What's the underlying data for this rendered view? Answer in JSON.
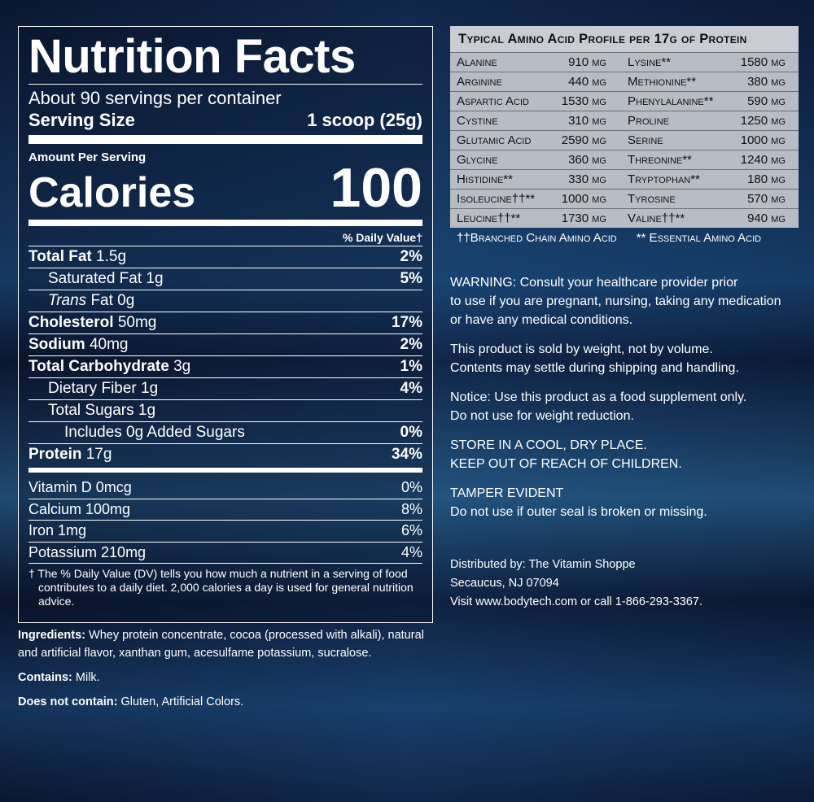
{
  "nutrition": {
    "title": "Nutrition Facts",
    "servings": "About 90 servings per container",
    "serving_size_label": "Serving Size",
    "serving_size_value": "1 scoop (25g)",
    "amount_per_serving": "Amount Per Serving",
    "calories_label": "Calories",
    "calories_value": "100",
    "daily_value_header": "% Daily Value†",
    "rows": [
      {
        "label": "Total Fat",
        "amount": "1.5g",
        "dv": "2%"
      },
      {
        "label": "Saturated Fat 1g",
        "dv": "5%"
      },
      {
        "label_italic": "Trans",
        "label": "Fat 0g"
      },
      {
        "label": "Cholesterol",
        "amount": "50mg",
        "dv": "17%"
      },
      {
        "label": "Sodium",
        "amount": "40mg",
        "dv": "2%"
      },
      {
        "label": "Total Carbohydrate",
        "amount": "3g",
        "dv": "1%"
      },
      {
        "label": "Dietary Fiber 1g",
        "dv": "4%"
      },
      {
        "label": "Total Sugars 1g"
      },
      {
        "label": "Includes 0g Added Sugars",
        "dv": "0%"
      },
      {
        "label": "Protein",
        "amount": "17g",
        "dv": "34%"
      }
    ],
    "vitamins": [
      {
        "label": "Vitamin D 0mcg",
        "dv": "0%"
      },
      {
        "label": "Calcium 100mg",
        "dv": "8%"
      },
      {
        "label": "Iron 1mg",
        "dv": "6%"
      },
      {
        "label": "Potassium 210mg",
        "dv": "4%"
      }
    ],
    "footnote": "† The % Daily Value (DV) tells you how much a nutrient in a serving of food contributes to a daily diet. 2,000 calories a day is used for general nutrition advice."
  },
  "ingredients": {
    "label": "Ingredients:",
    "text": "Whey protein concentrate, cocoa (processed with alkali), natural and artificial flavor, xanthan gum, acesulfame potassium, sucralose."
  },
  "contains": {
    "label": "Contains:",
    "text": "Milk."
  },
  "does_not_contain": {
    "label": "Does not contain:",
    "text": "Gluten, Artificial Colors."
  },
  "amino": {
    "title": "Typical Amino Acid Profile per 17g of Protein",
    "rows": [
      [
        "Alanine",
        "910 mg",
        "Lysine**",
        "1580 mg"
      ],
      [
        "Arginine",
        "440 mg",
        "Methionine**",
        "380 mg"
      ],
      [
        "Aspartic Acid",
        "1530 mg",
        "Phenylalanine**",
        "590 mg"
      ],
      [
        "Cystine",
        "310 mg",
        "Proline",
        "1250 mg"
      ],
      [
        "Glutamic Acid",
        "2590 mg",
        "Serine",
        "1000 mg"
      ],
      [
        "Glycine",
        "360 mg",
        "Threonine**",
        "1240 mg"
      ],
      [
        "Histidine**",
        "330 mg",
        "Tryptophan**",
        "180 mg"
      ],
      [
        "Isoleucine††**",
        "1000 mg",
        "Tyrosine",
        "570 mg"
      ],
      [
        "Leucine††**",
        "1730 mg",
        "Valine††**",
        "940 mg"
      ]
    ],
    "legend": [
      "††Branched Chain Amino Acid",
      "** Essential Amino Acid"
    ]
  },
  "notices": [
    [
      "WARNING: Consult your healthcare provider prior",
      "to use if you are pregnant, nursing, taking any medication",
      "or have any medical conditions."
    ],
    [
      "This product is sold by weight, not by volume.",
      "Contents may settle during shipping and handling."
    ],
    [
      "Notice: Use this product as a food supplement only.",
      "Do not use for weight reduction."
    ],
    [
      "STORE IN A COOL, DRY PLACE.",
      "KEEP OUT OF REACH OF CHILDREN."
    ],
    [
      "TAMPER EVIDENT",
      "Do not use if outer seal is broken or missing."
    ]
  ],
  "distributor": [
    "Distributed by: The Vitamin Shoppe",
    "Secaucus, NJ 07094",
    "Visit www.bodytech.com or call 1-866-293-3367."
  ]
}
